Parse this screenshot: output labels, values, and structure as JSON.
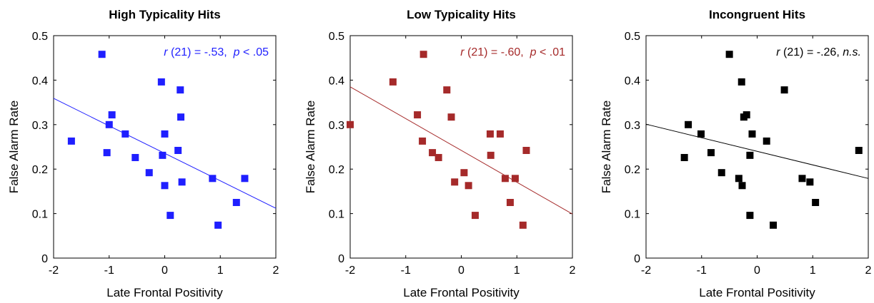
{
  "chart_data": [
    {
      "type": "scatter",
      "title": "High Typicality Hits",
      "xlabel": "Late Frontal Positivity",
      "ylabel": "False Alarm Rate",
      "color": "#1f1fff",
      "x": [
        -1.68,
        -1.13,
        -0.95,
        -1.0,
        -1.04,
        -0.71,
        -0.53,
        -0.28,
        -0.06,
        0.0,
        -0.04,
        0.0,
        0.1,
        0.28,
        0.29,
        0.24,
        0.31,
        0.86,
        1.29,
        0.96,
        1.44
      ],
      "y": [
        0.263,
        0.458,
        0.322,
        0.3,
        0.237,
        0.279,
        0.226,
        0.192,
        0.396,
        0.279,
        0.231,
        0.163,
        0.096,
        0.378,
        0.317,
        0.242,
        0.171,
        0.179,
        0.125,
        0.074,
        0.179
      ],
      "fit": {
        "x": [
          -2,
          2
        ],
        "y": [
          0.359,
          0.112
        ]
      },
      "annotation": [
        {
          "text": "r",
          "italic": true
        },
        {
          "text": " (21) = -.53,  "
        },
        {
          "text": "p",
          "italic": true
        },
        {
          "text": " < .05"
        }
      ],
      "xlim": [
        -2,
        2
      ],
      "ylim": [
        0,
        0.5
      ],
      "xticks": [
        -2,
        -1,
        0,
        1,
        2
      ],
      "yticks": [
        0,
        0.1,
        0.2,
        0.3,
        0.4,
        0.5
      ]
    },
    {
      "type": "scatter",
      "title": "Low Typicality Hits",
      "xlabel": "Late Frontal Positivity",
      "ylabel": "False Alarm Rate",
      "color": "#a52a2a",
      "x": [
        -2.0,
        -1.23,
        -0.68,
        -0.79,
        -0.7,
        -0.52,
        -0.41,
        -0.26,
        -0.18,
        -0.12,
        0.05,
        0.13,
        0.25,
        0.52,
        0.53,
        0.7,
        0.79,
        0.88,
        0.97,
        1.11,
        1.17
      ],
      "y": [
        0.3,
        0.396,
        0.458,
        0.322,
        0.263,
        0.237,
        0.226,
        0.378,
        0.317,
        0.171,
        0.192,
        0.163,
        0.096,
        0.279,
        0.231,
        0.279,
        0.179,
        0.125,
        0.179,
        0.074,
        0.242
      ],
      "fit": {
        "x": [
          -2,
          2
        ],
        "y": [
          0.385,
          0.099
        ]
      },
      "annotation": [
        {
          "text": "r",
          "italic": true
        },
        {
          "text": " (21) = -.60,  "
        },
        {
          "text": "p",
          "italic": true
        },
        {
          "text": " < .01"
        }
      ],
      "xlim": [
        -2,
        2
      ],
      "ylim": [
        0,
        0.5
      ],
      "xticks": [
        -2,
        -1,
        0,
        1,
        2
      ],
      "yticks": [
        0,
        0.1,
        0.2,
        0.3,
        0.4,
        0.5
      ]
    },
    {
      "type": "scatter",
      "title": "Incongruent Hits",
      "xlabel": "Late Frontal Positivity",
      "ylabel": "False Alarm Rate",
      "color": "#000000",
      "x": [
        -1.31,
        -1.24,
        -1.01,
        -0.83,
        -0.64,
        -0.5,
        -0.33,
        -0.28,
        -0.27,
        -0.24,
        -0.19,
        -0.13,
        -0.13,
        -0.09,
        0.17,
        0.29,
        0.49,
        0.81,
        0.95,
        1.05,
        1.83
      ],
      "y": [
        0.226,
        0.3,
        0.279,
        0.237,
        0.192,
        0.458,
        0.179,
        0.396,
        0.163,
        0.317,
        0.322,
        0.231,
        0.096,
        0.279,
        0.263,
        0.074,
        0.378,
        0.179,
        0.171,
        0.125,
        0.242
      ],
      "fit": {
        "x": [
          -2,
          2
        ],
        "y": [
          0.301,
          0.179
        ]
      },
      "annotation": [
        {
          "text": "r",
          "italic": true
        },
        {
          "text": " (21) = -.26, "
        },
        {
          "text": "n.s.",
          "italic": true
        }
      ],
      "xlim": [
        -2,
        2
      ],
      "ylim": [
        0,
        0.5
      ],
      "xticks": [
        -2,
        -1,
        0,
        1,
        2
      ],
      "yticks": [
        0,
        0.1,
        0.2,
        0.3,
        0.4,
        0.5
      ]
    }
  ]
}
